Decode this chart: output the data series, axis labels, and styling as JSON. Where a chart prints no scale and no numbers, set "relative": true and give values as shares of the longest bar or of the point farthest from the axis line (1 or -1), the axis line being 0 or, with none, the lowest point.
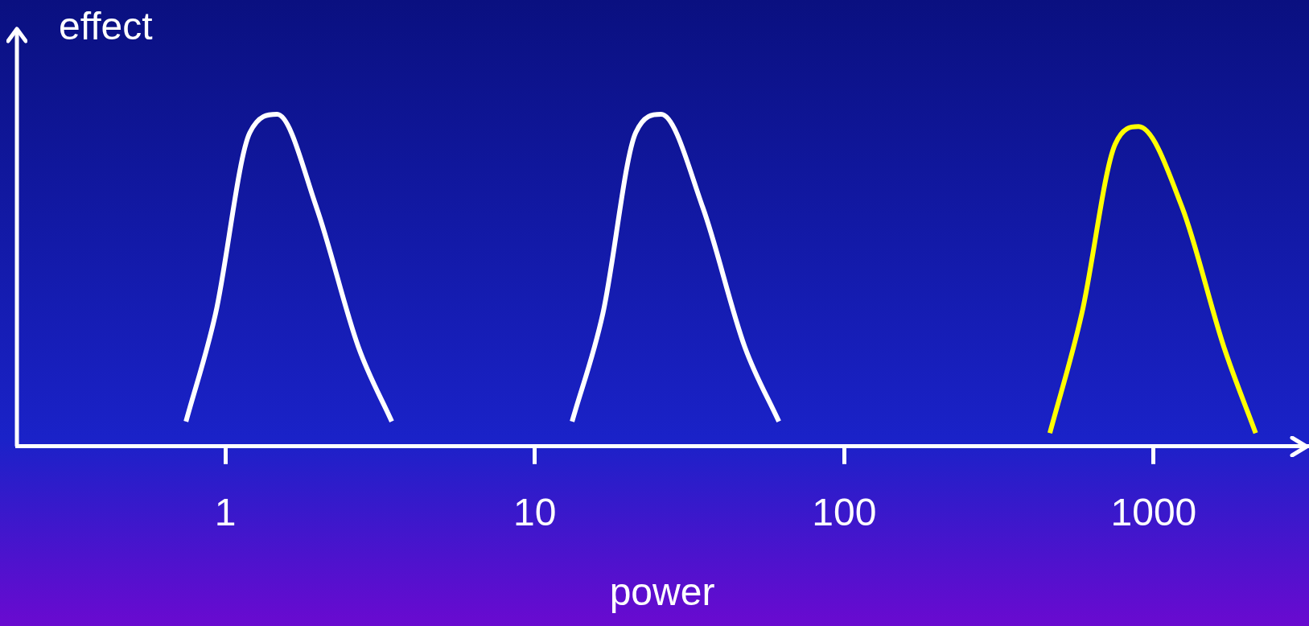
{
  "chart_data": {
    "type": "line",
    "xlabel": "power",
    "ylabel": "effect",
    "log": "x",
    "relative": true,
    "xlim": [
      0.212,
      3140
    ],
    "xticks": [
      1,
      10,
      100,
      1000
    ],
    "grid": false,
    "legend": false,
    "marker": "none",
    "line_style": "solid",
    "series": [
      {
        "color": "#ffffff",
        "x": [
          0.746,
          0.93,
          1.2,
          1.47,
          1.97,
          2.69,
          3.45
        ],
        "values": [
          0.075,
          0.4,
          0.945,
          1,
          0.72,
          0.3,
          0.075
        ]
      },
      {
        "color": "#ffffff",
        "x": [
          13.2,
          16.6,
          21.2,
          25.6,
          34.9,
          47.7,
          61.5
        ],
        "values": [
          0.075,
          0.4,
          0.945,
          1,
          0.72,
          0.3,
          0.075
        ]
      },
      {
        "color": "#ffff00",
        "x": [
          462,
          586,
          751,
          894,
          1236,
          1686,
          2137
        ],
        "values": [
          0.04,
          0.4,
          0.91,
          0.963,
          0.72,
          0.3,
          0.04
        ]
      }
    ]
  }
}
